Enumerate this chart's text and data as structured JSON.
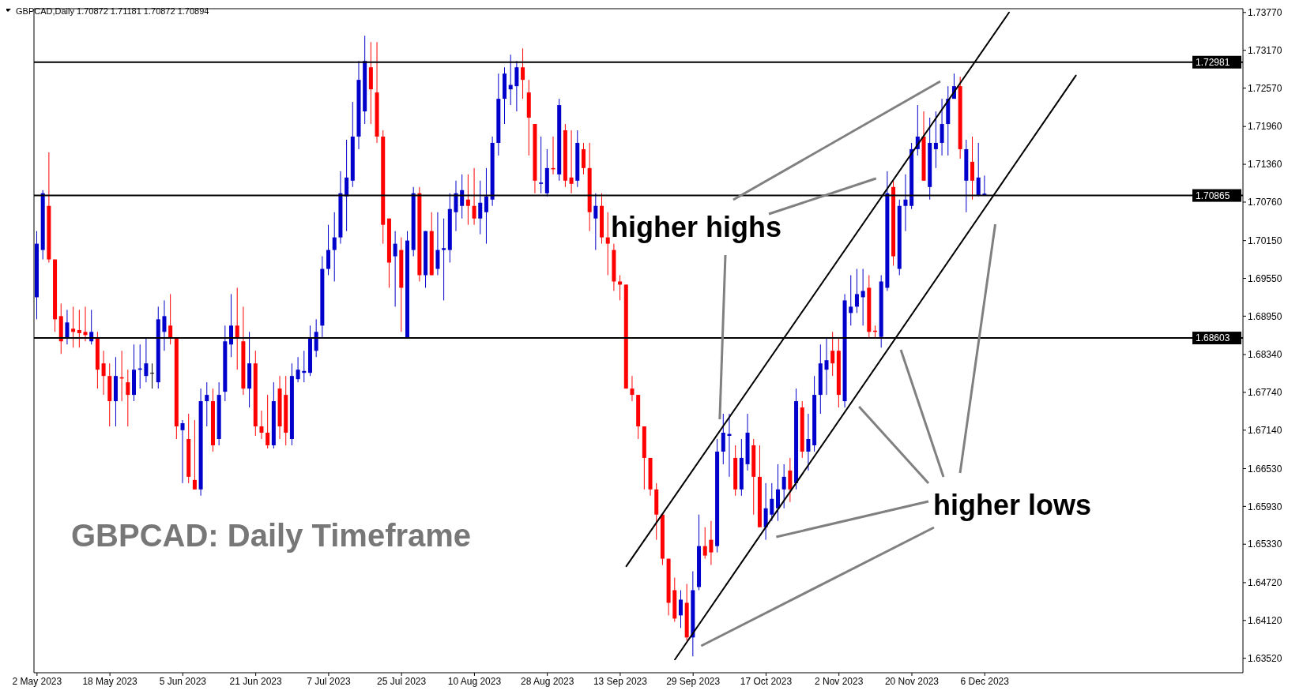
{
  "chart_data": {
    "type": "candlestick",
    "title": "GBPCAD: Daily Timeframe",
    "subtitle": "GBPCAD,Daily  1.70872 1.71181 1.70872 1.70894",
    "annotations": [
      "higher highs",
      "higher lows"
    ],
    "categories": [
      "2 May 2023",
      null,
      null,
      null,
      null,
      null,
      null,
      null,
      null,
      null,
      null,
      null,
      "18 May 2023",
      null,
      null,
      null,
      null,
      null,
      null,
      null,
      null,
      null,
      null,
      null,
      "5 Jun 2023",
      null,
      null,
      null,
      null,
      null,
      null,
      null,
      null,
      null,
      null,
      null,
      "21 Jun 2023",
      null,
      null,
      null,
      null,
      null,
      null,
      null,
      null,
      null,
      null,
      null,
      "7 Jul 2023",
      null,
      null,
      null,
      null,
      null,
      null,
      null,
      null,
      null,
      null,
      null,
      "25 Jul 2023",
      null,
      null,
      null,
      null,
      null,
      null,
      null,
      null,
      null,
      null,
      null,
      "10 Aug 2023",
      null,
      null,
      null,
      null,
      null,
      null,
      null,
      null,
      null,
      null,
      null,
      "28 Aug 2023",
      null,
      null,
      null,
      null,
      null,
      null,
      null,
      null,
      null,
      null,
      null,
      "13 Sep 2023",
      null,
      null,
      null,
      null,
      null,
      null,
      null,
      null,
      null,
      null,
      null,
      "29 Sep 2023",
      null,
      null,
      null,
      null,
      null,
      null,
      null,
      null,
      null,
      null,
      null,
      "17 Oct 2023",
      null,
      null,
      null,
      null,
      null,
      null,
      null,
      null,
      null,
      null,
      null,
      "2 Nov 2023",
      null,
      null,
      null,
      null,
      null,
      null,
      null,
      null,
      null,
      null,
      null,
      "20 Nov 2023",
      null,
      null,
      null,
      null,
      null,
      null,
      null,
      null,
      null,
      null,
      null,
      "6 Dec 2023",
      null,
      null,
      null,
      null,
      null,
      null,
      null,
      null,
      null,
      null,
      null,
      null,
      null,
      null,
      null,
      null,
      null,
      null,
      null,
      null,
      null,
      null,
      null,
      null,
      null,
      null,
      null,
      null,
      null,
      null,
      null,
      null,
      null,
      null,
      null,
      null,
      null,
      null,
      null,
      null,
      null,
      null
    ],
    "ohlc": [
      [
        1.6925,
        1.703,
        1.689,
        1.701
      ],
      [
        1.7,
        1.7095,
        1.6985,
        1.709
      ],
      [
        1.707,
        1.7155,
        1.698,
        1.6985
      ],
      [
        1.6985,
        1.6985,
        1.687,
        1.689
      ],
      [
        1.6895,
        1.6915,
        1.6835,
        1.6855
      ],
      [
        1.686,
        1.6905,
        1.685,
        1.6885
      ],
      [
        1.6875,
        1.691,
        1.6845,
        1.687
      ],
      [
        1.6873,
        1.6905,
        1.6845,
        1.6868
      ],
      [
        1.687,
        1.691,
        1.6855,
        1.6865
      ],
      [
        1.6855,
        1.6905,
        1.685,
        1.687
      ],
      [
        1.686,
        1.687,
        1.678,
        1.681
      ],
      [
        1.682,
        1.684,
        1.677,
        1.68
      ],
      [
        1.68,
        1.682,
        1.672,
        1.676
      ],
      [
        1.676,
        1.683,
        1.672,
        1.68
      ],
      [
        1.6798,
        1.684,
        1.676,
        1.6796
      ],
      [
        1.679,
        1.681,
        1.672,
        1.677
      ],
      [
        1.677,
        1.685,
        1.676,
        1.681
      ],
      [
        1.681,
        1.685,
        1.678,
        1.6812
      ],
      [
        1.68,
        1.686,
        1.679,
        1.682
      ],
      [
        1.6805,
        1.682,
        1.678,
        1.6805
      ],
      [
        1.679,
        1.691,
        1.678,
        1.689
      ],
      [
        1.687,
        1.692,
        1.684,
        1.6895
      ],
      [
        1.688,
        1.693,
        1.685,
        1.686
      ],
      [
        1.686,
        1.686,
        1.67,
        1.672
      ],
      [
        1.6714,
        1.673,
        1.663,
        1.6725
      ],
      [
        1.67,
        1.674,
        1.663,
        1.664
      ],
      [
        1.6635,
        1.673,
        1.662,
        1.662
      ],
      [
        1.662,
        1.678,
        1.661,
        1.676
      ],
      [
        1.676,
        1.679,
        1.672,
        1.677
      ],
      [
        1.676,
        1.678,
        1.668,
        1.669
      ],
      [
        1.67,
        1.679,
        1.669,
        1.677
      ],
      [
        1.6775,
        1.688,
        1.676,
        1.6855
      ],
      [
        1.685,
        1.693,
        1.683,
        1.688
      ],
      [
        1.688,
        1.694,
        1.681,
        1.686
      ],
      [
        1.6855,
        1.691,
        1.677,
        1.678
      ],
      [
        1.678,
        1.687,
        1.675,
        1.682
      ],
      [
        1.682,
        1.684,
        1.6705,
        1.672
      ],
      [
        1.672,
        1.6745,
        1.67,
        1.671
      ],
      [
        1.671,
        1.677,
        1.6685,
        1.669
      ],
      [
        1.669,
        1.679,
        1.6685,
        1.676
      ],
      [
        1.678,
        1.68,
        1.67,
        1.672
      ],
      [
        1.677,
        1.68,
        1.669,
        1.671
      ],
      [
        1.67,
        1.682,
        1.669,
        1.68
      ],
      [
        1.6795,
        1.683,
        1.679,
        1.681
      ],
      [
        1.6805,
        1.684,
        1.679,
        1.6808
      ],
      [
        1.6805,
        1.688,
        1.68,
        1.686
      ],
      [
        1.684,
        1.689,
        1.683,
        1.687
      ],
      [
        1.688,
        1.699,
        1.686,
        1.697
      ],
      [
        1.697,
        1.704,
        1.696,
        1.7
      ],
      [
        1.7,
        1.706,
        1.695,
        1.702
      ],
      [
        1.702,
        1.7125,
        1.701,
        1.709
      ],
      [
        1.7085,
        1.7175,
        1.703,
        1.7115
      ],
      [
        1.711,
        1.7235,
        1.71,
        1.718
      ],
      [
        1.718,
        1.73,
        1.716,
        1.727
      ],
      [
        1.722,
        1.734,
        1.72,
        1.73
      ],
      [
        1.729,
        1.733,
        1.72,
        1.7255
      ],
      [
        1.725,
        1.733,
        1.717,
        1.718
      ],
      [
        1.718,
        1.719,
        1.701,
        1.704
      ],
      [
        1.705,
        1.705,
        1.694,
        1.698
      ],
      [
        1.699,
        1.703,
        1.691,
        1.701
      ],
      [
        1.7,
        1.702,
        1.687,
        1.694
      ],
      [
        1.686,
        1.703,
        1.686,
        1.7015
      ],
      [
        1.7,
        1.71,
        1.699,
        1.709
      ],
      [
        1.709,
        1.71,
        1.695,
        1.696
      ],
      [
        1.696,
        1.703,
        1.694,
        1.703
      ],
      [
        1.703,
        1.706,
        1.696,
        1.696
      ],
      [
        1.697,
        1.706,
        1.696,
        1.7
      ],
      [
        1.7,
        1.705,
        1.692,
        1.7003
      ],
      [
        1.7,
        1.709,
        1.698,
        1.7065
      ],
      [
        1.706,
        1.711,
        1.703,
        1.709
      ],
      [
        1.707,
        1.712,
        1.705,
        1.7095
      ],
      [
        1.708,
        1.712,
        1.704,
        1.707
      ],
      [
        1.707,
        1.713,
        1.704,
        1.705
      ],
      [
        1.705,
        1.711,
        1.7025,
        1.7075
      ],
      [
        1.706,
        1.713,
        1.701,
        1.7085
      ],
      [
        1.708,
        1.718,
        1.707,
        1.717
      ],
      [
        1.717,
        1.728,
        1.715,
        1.724
      ],
      [
        1.724,
        1.729,
        1.72,
        1.728
      ],
      [
        1.7255,
        1.731,
        1.723,
        1.7262
      ],
      [
        1.726,
        1.73,
        1.722,
        1.729
      ],
      [
        1.729,
        1.732,
        1.724,
        1.727
      ],
      [
        1.725,
        1.727,
        1.715,
        1.721
      ],
      [
        1.72,
        1.72,
        1.709,
        1.711
      ],
      [
        1.7105,
        1.718,
        1.709,
        1.7107
      ],
      [
        1.709,
        1.716,
        1.7085,
        1.713
      ],
      [
        1.713,
        1.718,
        1.712,
        1.7128
      ],
      [
        1.712,
        1.724,
        1.711,
        1.723
      ],
      [
        1.719,
        1.72,
        1.71,
        1.711
      ],
      [
        1.7115,
        1.719,
        1.709,
        1.7105
      ],
      [
        1.711,
        1.719,
        1.71,
        1.717
      ],
      [
        1.716,
        1.717,
        1.712,
        1.713
      ],
      [
        1.713,
        1.717,
        1.703,
        1.706
      ],
      [
        1.705,
        1.709,
        1.7,
        1.707
      ],
      [
        1.707,
        1.709,
        1.701,
        1.702
      ],
      [
        1.702,
        1.706,
        1.696,
        1.701
      ],
      [
        1.7,
        1.701,
        1.6935,
        1.695
      ],
      [
        1.695,
        1.696,
        1.692,
        1.6945
      ],
      [
        1.6945,
        1.6945,
        1.678,
        1.678
      ],
      [
        1.678,
        1.68,
        1.676,
        1.677
      ],
      [
        1.677,
        1.677,
        1.67,
        1.672
      ],
      [
        1.672,
        1.672,
        1.662,
        1.667
      ],
      [
        1.667,
        1.667,
        1.661,
        1.662
      ],
      [
        1.662,
        1.663,
        1.654,
        1.658
      ],
      [
        1.658,
        1.658,
        1.65,
        1.651
      ],
      [
        1.651,
        1.651,
        1.642,
        1.644
      ],
      [
        1.646,
        1.648,
        1.641,
        1.6415
      ],
      [
        1.642,
        1.646,
        1.64,
        1.6445
      ],
      [
        1.644,
        1.647,
        1.638,
        1.6385
      ],
      [
        1.6385,
        1.649,
        1.6355,
        1.646
      ],
      [
        1.6465,
        1.658,
        1.646,
        1.653
      ],
      [
        1.653,
        1.656,
        1.651,
        1.6515
      ],
      [
        1.654,
        1.657,
        1.65,
        1.652
      ],
      [
        1.653,
        1.67,
        1.652,
        1.668
      ],
      [
        1.668,
        1.674,
        1.666,
        1.671
      ],
      [
        1.6705,
        1.674,
        1.664,
        1.6708
      ],
      [
        1.667,
        1.669,
        1.661,
        1.662
      ],
      [
        1.662,
        1.67,
        1.661,
        1.667
      ],
      [
        1.666,
        1.674,
        1.665,
        1.671
      ],
      [
        1.669,
        1.67,
        1.658,
        1.664
      ],
      [
        1.664,
        1.669,
        1.656,
        1.656
      ],
      [
        1.656,
        1.663,
        1.654,
        1.659
      ],
      [
        1.658,
        1.663,
        1.657,
        1.6605
      ],
      [
        1.659,
        1.666,
        1.657,
        1.662
      ],
      [
        1.662,
        1.666,
        1.659,
        1.664
      ],
      [
        1.665,
        1.667,
        1.66,
        1.662
      ],
      [
        1.663,
        1.678,
        1.662,
        1.676
      ],
      [
        1.675,
        1.676,
        1.667,
        1.668
      ],
      [
        1.668,
        1.674,
        1.665,
        1.67
      ],
      [
        1.669,
        1.68,
        1.668,
        1.677
      ],
      [
        1.677,
        1.685,
        1.674,
        1.682
      ],
      [
        1.681,
        1.686,
        1.677,
        1.6825
      ],
      [
        1.684,
        1.687,
        1.68,
        1.682
      ],
      [
        1.684,
        1.686,
        1.675,
        1.677
      ],
      [
        1.676,
        1.693,
        1.675,
        1.692
      ],
      [
        1.69,
        1.696,
        1.688,
        1.691
      ],
      [
        1.691,
        1.697,
        1.69,
        1.693
      ],
      [
        1.6925,
        1.697,
        1.688,
        1.6935
      ],
      [
        1.694,
        1.696,
        1.686,
        1.687
      ],
      [
        1.6872,
        1.688,
        1.686,
        1.687
      ],
      [
        1.6862,
        1.696,
        1.6845,
        1.695
      ],
      [
        1.694,
        1.7125,
        1.6935,
        1.709
      ],
      [
        1.71,
        1.711,
        1.6975,
        1.699
      ],
      [
        1.697,
        1.708,
        1.696,
        1.707
      ],
      [
        1.707,
        1.712,
        1.703,
        1.708
      ],
      [
        1.707,
        1.717,
        1.7065,
        1.716
      ],
      [
        1.716,
        1.723,
        1.715,
        1.718
      ],
      [
        1.718,
        1.722,
        1.711,
        1.711
      ],
      [
        1.71,
        1.721,
        1.708,
        1.717
      ],
      [
        1.716,
        1.722,
        1.713,
        1.717
      ],
      [
        1.717,
        1.724,
        1.715,
        1.72
      ],
      [
        1.72,
        1.726,
        1.715,
        1.724
      ],
      [
        1.724,
        1.728,
        1.724,
        1.726
      ],
      [
        1.726,
        1.7275,
        1.7145,
        1.716
      ],
      [
        1.711,
        1.7175,
        1.706,
        1.716
      ],
      [
        1.714,
        1.718,
        1.708,
        1.711
      ],
      [
        1.7087,
        1.717,
        1.7085,
        1.7115
      ],
      [
        1.70872,
        1.71181,
        1.70872,
        1.70894
      ],
      null,
      null,
      null,
      null,
      null,
      null,
      null,
      null,
      null,
      null,
      null,
      null,
      null,
      null,
      null,
      null,
      null,
      null,
      null,
      null,
      null,
      null,
      null,
      null,
      null,
      null,
      null,
      null,
      null,
      null,
      null,
      null,
      null,
      null,
      null,
      null,
      null,
      null,
      null,
      null,
      null,
      null
    ],
    "colors": [
      "#0000cc",
      "#0000cc",
      "#ff0000",
      "#ff0000",
      "#ff0000",
      "#0000cc",
      "#ff0000",
      "#ff0000",
      "#ff0000",
      "#0000cc",
      "#ff0000",
      "#ff0000",
      "#ff0000",
      "#0000cc",
      "#ff0000",
      "#ff0000",
      "#0000cc",
      "#0000cc",
      "#0000cc",
      "#000000",
      "#0000cc",
      "#0000cc",
      "#ff0000",
      "#ff0000",
      "#0000cc",
      "#ff0000",
      "#ff0000",
      "#0000cc",
      "#0000cc",
      "#ff0000",
      "#0000cc",
      "#0000cc",
      "#0000cc",
      "#ff0000",
      "#ff0000",
      "#0000cc",
      "#ff0000",
      "#ff0000",
      "#ff0000",
      "#0000cc",
      "#ff0000",
      "#ff0000",
      "#0000cc",
      "#0000cc",
      "#0000cc",
      "#0000cc",
      "#0000cc",
      "#0000cc",
      "#0000cc",
      "#0000cc",
      "#0000cc",
      "#0000cc",
      "#0000cc",
      "#0000cc",
      "#0000cc",
      "#ff0000",
      "#ff0000",
      "#ff0000",
      "#ff0000",
      "#0000cc",
      "#ff0000",
      "#0000cc",
      "#0000cc",
      "#ff0000",
      "#0000cc",
      "#ff0000",
      "#0000cc",
      "#0000cc",
      "#0000cc",
      "#0000cc",
      "#0000cc",
      "#ff0000",
      "#ff0000",
      "#0000cc",
      "#0000cc",
      "#0000cc",
      "#0000cc",
      "#0000cc",
      "#0000cc",
      "#0000cc",
      "#ff0000",
      "#ff0000",
      "#ff0000",
      "#0000cc",
      "#0000cc",
      "#ff0000",
      "#0000cc",
      "#ff0000",
      "#ff0000",
      "#0000cc",
      "#ff0000",
      "#ff0000",
      "#0000cc",
      "#ff0000",
      "#ff0000",
      "#ff0000",
      "#ff0000",
      "#ff0000",
      "#ff0000",
      "#ff0000",
      "#ff0000",
      "#ff0000",
      "#ff0000",
      "#ff0000",
      "#ff0000",
      "#ff0000",
      "#0000cc",
      "#ff0000",
      "#0000cc",
      "#0000cc",
      "#ff0000",
      "#ff0000",
      "#0000cc",
      "#0000cc",
      "#0000cc",
      "#ff0000",
      "#0000cc",
      "#0000cc",
      "#ff0000",
      "#ff0000",
      "#0000cc",
      "#0000cc",
      "#0000cc",
      "#0000cc",
      "#ff0000",
      "#0000cc",
      "#ff0000",
      "#0000cc",
      "#0000cc",
      "#0000cc",
      "#0000cc",
      "#ff0000",
      "#ff0000",
      "#0000cc",
      "#0000cc",
      "#0000cc",
      "#0000cc",
      "#ff0000",
      "#ff0000",
      "#0000cc",
      "#0000cc",
      "#ff0000",
      "#0000cc",
      "#0000cc",
      "#0000cc",
      "#0000cc",
      "#ff0000",
      "#0000cc",
      "#0000cc",
      "#0000cc",
      "#0000cc",
      "#0000cc",
      "#ff0000",
      "#0000cc",
      "#ff0000",
      "#0000cc",
      "#0000cc",
      null,
      null,
      null,
      null,
      null,
      null,
      null,
      null,
      null,
      null,
      null,
      null,
      null,
      null,
      null,
      null,
      null,
      null,
      null,
      null,
      null,
      null,
      null,
      null,
      null,
      null,
      null,
      null,
      null,
      null,
      null,
      null,
      null,
      null,
      null,
      null,
      null,
      null,
      null,
      null,
      null,
      null
    ],
    "series": [
      {
        "type": "line",
        "color": "#000000",
        "values": [
          null,
          null,
          null,
          null,
          null,
          null,
          null,
          null,
          null,
          null,
          null,
          null,
          null,
          null,
          null,
          null,
          null,
          null,
          null,
          null,
          null,
          null,
          null,
          null,
          null,
          null,
          null,
          null,
          null,
          null,
          null,
          null,
          null,
          null,
          null,
          null,
          null,
          null,
          null,
          null,
          null,
          null,
          null,
          null,
          null,
          null,
          null,
          null,
          null,
          null,
          null,
          null,
          null,
          null,
          null,
          null,
          null,
          null,
          null,
          null,
          null,
          null,
          null,
          null,
          null,
          null,
          null,
          null,
          null,
          null,
          null,
          null,
          null,
          null,
          null,
          null,
          null,
          null,
          null,
          null,
          null,
          null,
          null,
          null,
          null,
          null,
          null,
          null,
          null,
          null,
          null,
          null,
          null,
          null,
          null,
          null,
          null,
          1.6498,
          null,
          null,
          null,
          null,
          null,
          null,
          null,
          null,
          null,
          null,
          null,
          null,
          null,
          null,
          null,
          null,
          null,
          null,
          null,
          null,
          null,
          null,
          null,
          null,
          null,
          null,
          null,
          null,
          null,
          null,
          null,
          null,
          null,
          null,
          null,
          null,
          null,
          null,
          null,
          null,
          null,
          null,
          null,
          null,
          null,
          null,
          null,
          null,
          null,
          null,
          null,
          null,
          null,
          null,
          null,
          null,
          null,
          null,
          null,
          null,
          null,
          null,
          1.7377,
          null,
          null,
          null,
          null,
          null,
          null,
          null,
          null,
          null,
          null,
          null,
          null,
          null,
          null,
          null,
          null,
          null,
          null,
          null,
          null,
          null,
          null,
          null,
          null,
          null,
          null,
          null,
          null,
          null,
          null,
          null,
          null,
          null,
          null,
          null,
          null,
          null,
          null
        ]
      },
      {
        "type": "line",
        "color": "#000000",
        "values": [
          null,
          null,
          null,
          null,
          null,
          null,
          null,
          null,
          null,
          null,
          null,
          null,
          null,
          null,
          null,
          null,
          null,
          null,
          null,
          null,
          null,
          null,
          null,
          null,
          null,
          null,
          null,
          null,
          null,
          null,
          null,
          null,
          null,
          null,
          null,
          null,
          null,
          null,
          null,
          null,
          null,
          null,
          null,
          null,
          null,
          null,
          null,
          null,
          null,
          null,
          null,
          null,
          null,
          null,
          null,
          null,
          null,
          null,
          null,
          null,
          null,
          null,
          null,
          null,
          null,
          null,
          null,
          null,
          null,
          null,
          null,
          null,
          null,
          null,
          null,
          null,
          null,
          null,
          null,
          null,
          null,
          null,
          null,
          null,
          null,
          null,
          null,
          null,
          null,
          null,
          null,
          null,
          null,
          null,
          null,
          null,
          null,
          null,
          null,
          null,
          null,
          null,
          null,
          null,
          null,
          1.635,
          null,
          null,
          null,
          null,
          null,
          null,
          null,
          null,
          null,
          null,
          null,
          null,
          null,
          null,
          null,
          null,
          null,
          null,
          null,
          null,
          null,
          null,
          null,
          null,
          null,
          null,
          null,
          null,
          null,
          null,
          null,
          null,
          null,
          null,
          null,
          null,
          null,
          null,
          null,
          null,
          null,
          null,
          null,
          null,
          null,
          null,
          null,
          null,
          null,
          null,
          null,
          null,
          null,
          null,
          null,
          null,
          null,
          null,
          null,
          null,
          null,
          null,
          null,
          null,
          null,
          1.7277,
          null,
          null,
          null,
          null,
          null,
          null,
          null,
          null,
          null,
          null,
          null,
          null,
          null,
          null,
          null,
          null,
          null,
          null,
          null,
          null,
          null,
          null,
          null,
          null,
          null,
          null,
          null
        ]
      }
    ],
    "ylim": [
      1.6329,
      1.7383
    ],
    "yticks": [
      {
        "value": 1.7377,
        "label": "1.73770"
      },
      {
        "value": 1.7317,
        "label": "1.73170"
      },
      {
        "value": 1.7257,
        "label": "1.72570"
      },
      {
        "value": 1.7196,
        "label": "1.71960"
      },
      {
        "value": 1.7136,
        "label": "1.71360"
      },
      {
        "value": 1.7076,
        "label": "1.70760"
      },
      {
        "value": 1.7015,
        "label": "1.70150"
      },
      {
        "value": 1.6955,
        "label": "1.69550"
      },
      {
        "value": 1.6895,
        "label": "1.68950"
      },
      {
        "value": 1.6834,
        "label": "1.68340"
      },
      {
        "value": 1.6774,
        "label": "1.67740"
      },
      {
        "value": 1.6714,
        "label": "1.67140"
      },
      {
        "value": 1.6653,
        "label": "1.66530"
      },
      {
        "value": 1.6593,
        "label": "1.65930"
      },
      {
        "value": 1.6533,
        "label": "1.65330"
      },
      {
        "value": 1.6472,
        "label": "1.64720"
      },
      {
        "value": 1.6412,
        "label": "1.64120"
      },
      {
        "value": 1.6352,
        "label": "1.63520"
      }
    ],
    "ref_lines": [
      {
        "axis": "y",
        "value": 1.72981,
        "label": "1.72981",
        "color": "#000000"
      },
      {
        "axis": "y",
        "value": 1.70865,
        "label": "1.70865",
        "color": "#000000"
      },
      {
        "axis": "y",
        "value": 1.68603,
        "label": "1.68603",
        "color": "#000000"
      }
    ]
  }
}
